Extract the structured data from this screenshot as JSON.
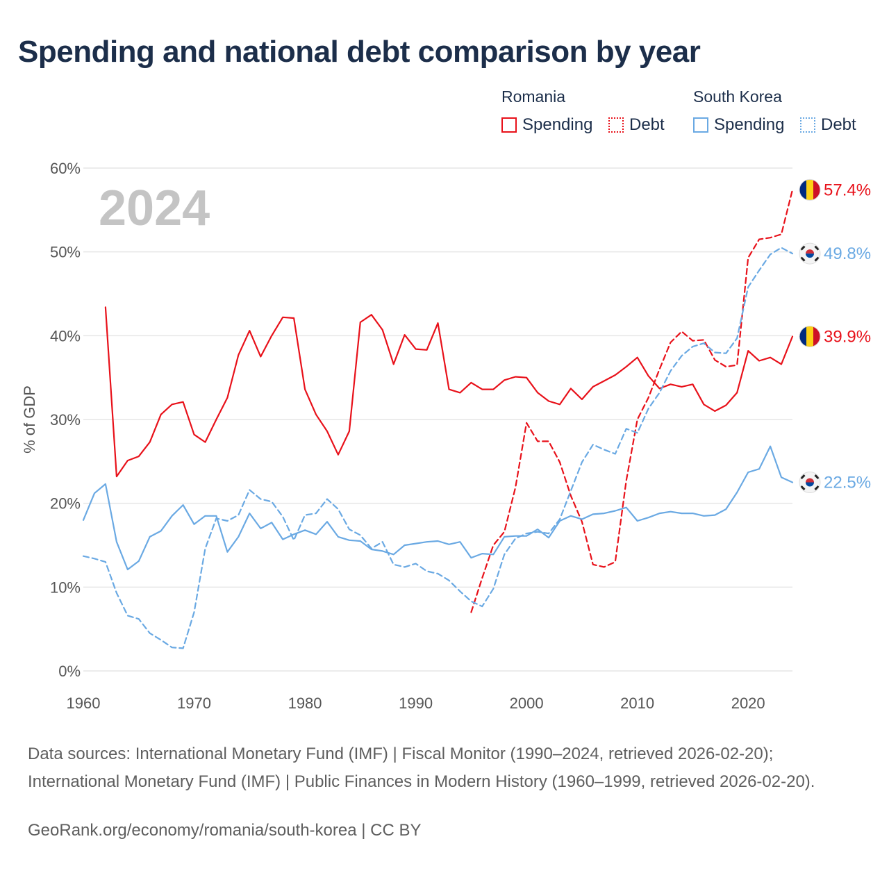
{
  "title": "Spending and national debt comparison by year",
  "legend": {
    "groups": [
      {
        "country": "Romania",
        "color": "#e8111a",
        "items": [
          {
            "label": "Spending",
            "style": "solid"
          },
          {
            "label": "Debt",
            "style": "dotted"
          }
        ]
      },
      {
        "country": "South Korea",
        "color": "#6aa9e3",
        "items": [
          {
            "label": "Spending",
            "style": "solid"
          },
          {
            "label": "Debt",
            "style": "dotted"
          }
        ]
      }
    ]
  },
  "year_watermark": "2024",
  "source": "Data sources: International Monetary Fund (IMF) | Fiscal Monitor (1990–2024, retrieved 2026-02-20); International Monetary Fund (IMF) | Public Finances in Modern History (1960–1999, retrieved 2026-02-20).",
  "attribution": "GeoRank.org/economy/romania/south-korea | CC BY",
  "chart_data": {
    "type": "line",
    "title": "Spending and national debt comparison by year",
    "xlabel": "",
    "ylabel": "% of GDP",
    "xlim": [
      1960,
      2024
    ],
    "ylim": [
      0,
      60
    ],
    "x_ticks": [
      1960,
      1970,
      1980,
      1990,
      2000,
      2010,
      2020
    ],
    "x_tick_labels": [
      "1960",
      "1970",
      "1980",
      "1990",
      "2000",
      "2010",
      "2020"
    ],
    "y_ticks": [
      0,
      10,
      20,
      30,
      40,
      50,
      60
    ],
    "y_tick_labels": [
      "0%",
      "10%",
      "20%",
      "30%",
      "40%",
      "50%",
      "60%"
    ],
    "grid": true,
    "series": [
      {
        "name": "Romania Spending",
        "country": "Romania",
        "metric": "Spending",
        "color": "#e8111a",
        "dash": "solid",
        "end_label": "39.9%",
        "flag": "romania",
        "x": [
          1962,
          1963,
          1964,
          1965,
          1966,
          1967,
          1968,
          1969,
          1970,
          1971,
          1972,
          1973,
          1974,
          1975,
          1976,
          1977,
          1978,
          1979,
          1980,
          1981,
          1982,
          1983,
          1984,
          1985,
          1986,
          1987,
          1988,
          1989,
          1990,
          1991,
          1992,
          1993,
          1994,
          1995,
          1996,
          1997,
          1998,
          1999,
          2000,
          2001,
          2002,
          2003,
          2004,
          2005,
          2006,
          2007,
          2008,
          2009,
          2010,
          2011,
          2012,
          2013,
          2014,
          2015,
          2016,
          2017,
          2018,
          2019,
          2020,
          2021,
          2022,
          2023,
          2024
        ],
        "values": [
          43.4,
          23.2,
          25.1,
          25.6,
          27.3,
          30.6,
          31.8,
          32.1,
          28.2,
          27.3,
          30.0,
          32.6,
          37.7,
          40.6,
          37.5,
          40.0,
          42.2,
          42.1,
          33.6,
          30.6,
          28.6,
          25.8,
          28.6,
          41.6,
          42.5,
          40.7,
          36.6,
          40.1,
          38.4,
          38.3,
          41.5,
          33.6,
          33.2,
          34.4,
          33.6,
          33.6,
          34.7,
          35.1,
          35.0,
          33.2,
          32.2,
          31.8,
          33.7,
          32.4,
          33.9,
          34.6,
          35.3,
          36.3,
          37.4,
          35.2,
          33.7,
          34.2,
          33.9,
          34.2,
          31.8,
          31.0,
          31.7,
          33.2,
          38.2,
          37.0,
          37.4,
          36.6,
          39.9
        ]
      },
      {
        "name": "Romania Debt",
        "country": "Romania",
        "metric": "Debt",
        "color": "#e8111a",
        "dash": "dashed",
        "end_label": "57.4%",
        "flag": "romania",
        "x": [
          1995,
          1996,
          1997,
          1998,
          1999,
          2000,
          2001,
          2002,
          2003,
          2004,
          2005,
          2006,
          2007,
          2008,
          2009,
          2010,
          2011,
          2012,
          2013,
          2014,
          2015,
          2016,
          2017,
          2018,
          2019,
          2020,
          2021,
          2022,
          2023,
          2024
        ],
        "values": [
          7.0,
          11.1,
          15.0,
          16.6,
          21.9,
          29.6,
          27.4,
          27.4,
          24.9,
          20.9,
          17.8,
          12.7,
          12.4,
          13.0,
          22.7,
          30.0,
          32.6,
          36.0,
          39.2,
          40.5,
          39.4,
          39.5,
          37.1,
          36.3,
          36.5,
          49.3,
          51.5,
          51.7,
          52.1,
          57.4
        ]
      },
      {
        "name": "South Korea Spending",
        "country": "South Korea",
        "metric": "Spending",
        "color": "#6aa9e3",
        "dash": "solid",
        "end_label": "22.5%",
        "flag": "south-korea",
        "x": [
          1960,
          1961,
          1962,
          1963,
          1964,
          1965,
          1966,
          1967,
          1968,
          1969,
          1970,
          1971,
          1972,
          1973,
          1974,
          1975,
          1976,
          1977,
          1978,
          1979,
          1980,
          1981,
          1982,
          1983,
          1984,
          1985,
          1986,
          1987,
          1988,
          1989,
          1990,
          1991,
          1992,
          1993,
          1994,
          1995,
          1996,
          1997,
          1998,
          1999,
          2000,
          2001,
          2002,
          2003,
          2004,
          2005,
          2006,
          2007,
          2008,
          2009,
          2010,
          2011,
          2012,
          2013,
          2014,
          2015,
          2016,
          2017,
          2018,
          2019,
          2020,
          2021,
          2022,
          2023,
          2024
        ],
        "values": [
          18.0,
          21.2,
          22.3,
          15.4,
          12.1,
          13.1,
          16.0,
          16.7,
          18.5,
          19.8,
          17.5,
          18.5,
          18.5,
          14.2,
          16.0,
          18.8,
          17.0,
          17.7,
          15.7,
          16.3,
          16.8,
          16.3,
          17.8,
          16.0,
          15.6,
          15.5,
          14.5,
          14.3,
          13.9,
          15.0,
          15.2,
          15.4,
          15.5,
          15.1,
          15.4,
          13.5,
          14.0,
          13.9,
          16.0,
          16.1,
          16.1,
          16.9,
          15.9,
          17.9,
          18.5,
          18.1,
          18.7,
          18.8,
          19.1,
          19.5,
          17.9,
          18.3,
          18.8,
          19.0,
          18.8,
          18.8,
          18.5,
          18.6,
          19.3,
          21.3,
          23.7,
          24.1,
          26.8,
          23.1,
          22.5
        ]
      },
      {
        "name": "South Korea Debt",
        "country": "South Korea",
        "metric": "Debt",
        "color": "#6aa9e3",
        "dash": "dashed",
        "end_label": "49.8%",
        "flag": "south-korea",
        "x": [
          1960,
          1961,
          1962,
          1963,
          1964,
          1965,
          1966,
          1967,
          1968,
          1969,
          1970,
          1971,
          1972,
          1973,
          1974,
          1975,
          1976,
          1977,
          1978,
          1979,
          1980,
          1981,
          1982,
          1983,
          1984,
          1985,
          1986,
          1987,
          1988,
          1989,
          1990,
          1991,
          1992,
          1993,
          1994,
          1995,
          1996,
          1997,
          1998,
          1999,
          2000,
          2001,
          2002,
          2003,
          2004,
          2005,
          2006,
          2007,
          2008,
          2009,
          2010,
          2011,
          2012,
          2013,
          2014,
          2015,
          2016,
          2017,
          2018,
          2019,
          2020,
          2021,
          2022,
          2023,
          2024
        ],
        "values": [
          13.7,
          13.4,
          13.0,
          9.3,
          6.6,
          6.2,
          4.5,
          3.7,
          2.8,
          2.7,
          7.0,
          14.6,
          18.2,
          17.9,
          18.6,
          21.6,
          20.5,
          20.2,
          18.4,
          15.6,
          18.6,
          18.8,
          20.5,
          19.3,
          16.9,
          16.2,
          14.6,
          15.4,
          12.7,
          12.4,
          12.8,
          11.9,
          11.6,
          10.8,
          9.5,
          8.3,
          7.7,
          9.8,
          13.9,
          15.8,
          16.4,
          16.6,
          16.4,
          18.1,
          21.5,
          24.9,
          27.0,
          26.4,
          25.9,
          28.9,
          28.4,
          31.3,
          33.2,
          35.8,
          37.6,
          38.7,
          39.1,
          38.0,
          37.9,
          39.7,
          45.8,
          47.8,
          49.7,
          50.5,
          49.8
        ]
      }
    ]
  }
}
